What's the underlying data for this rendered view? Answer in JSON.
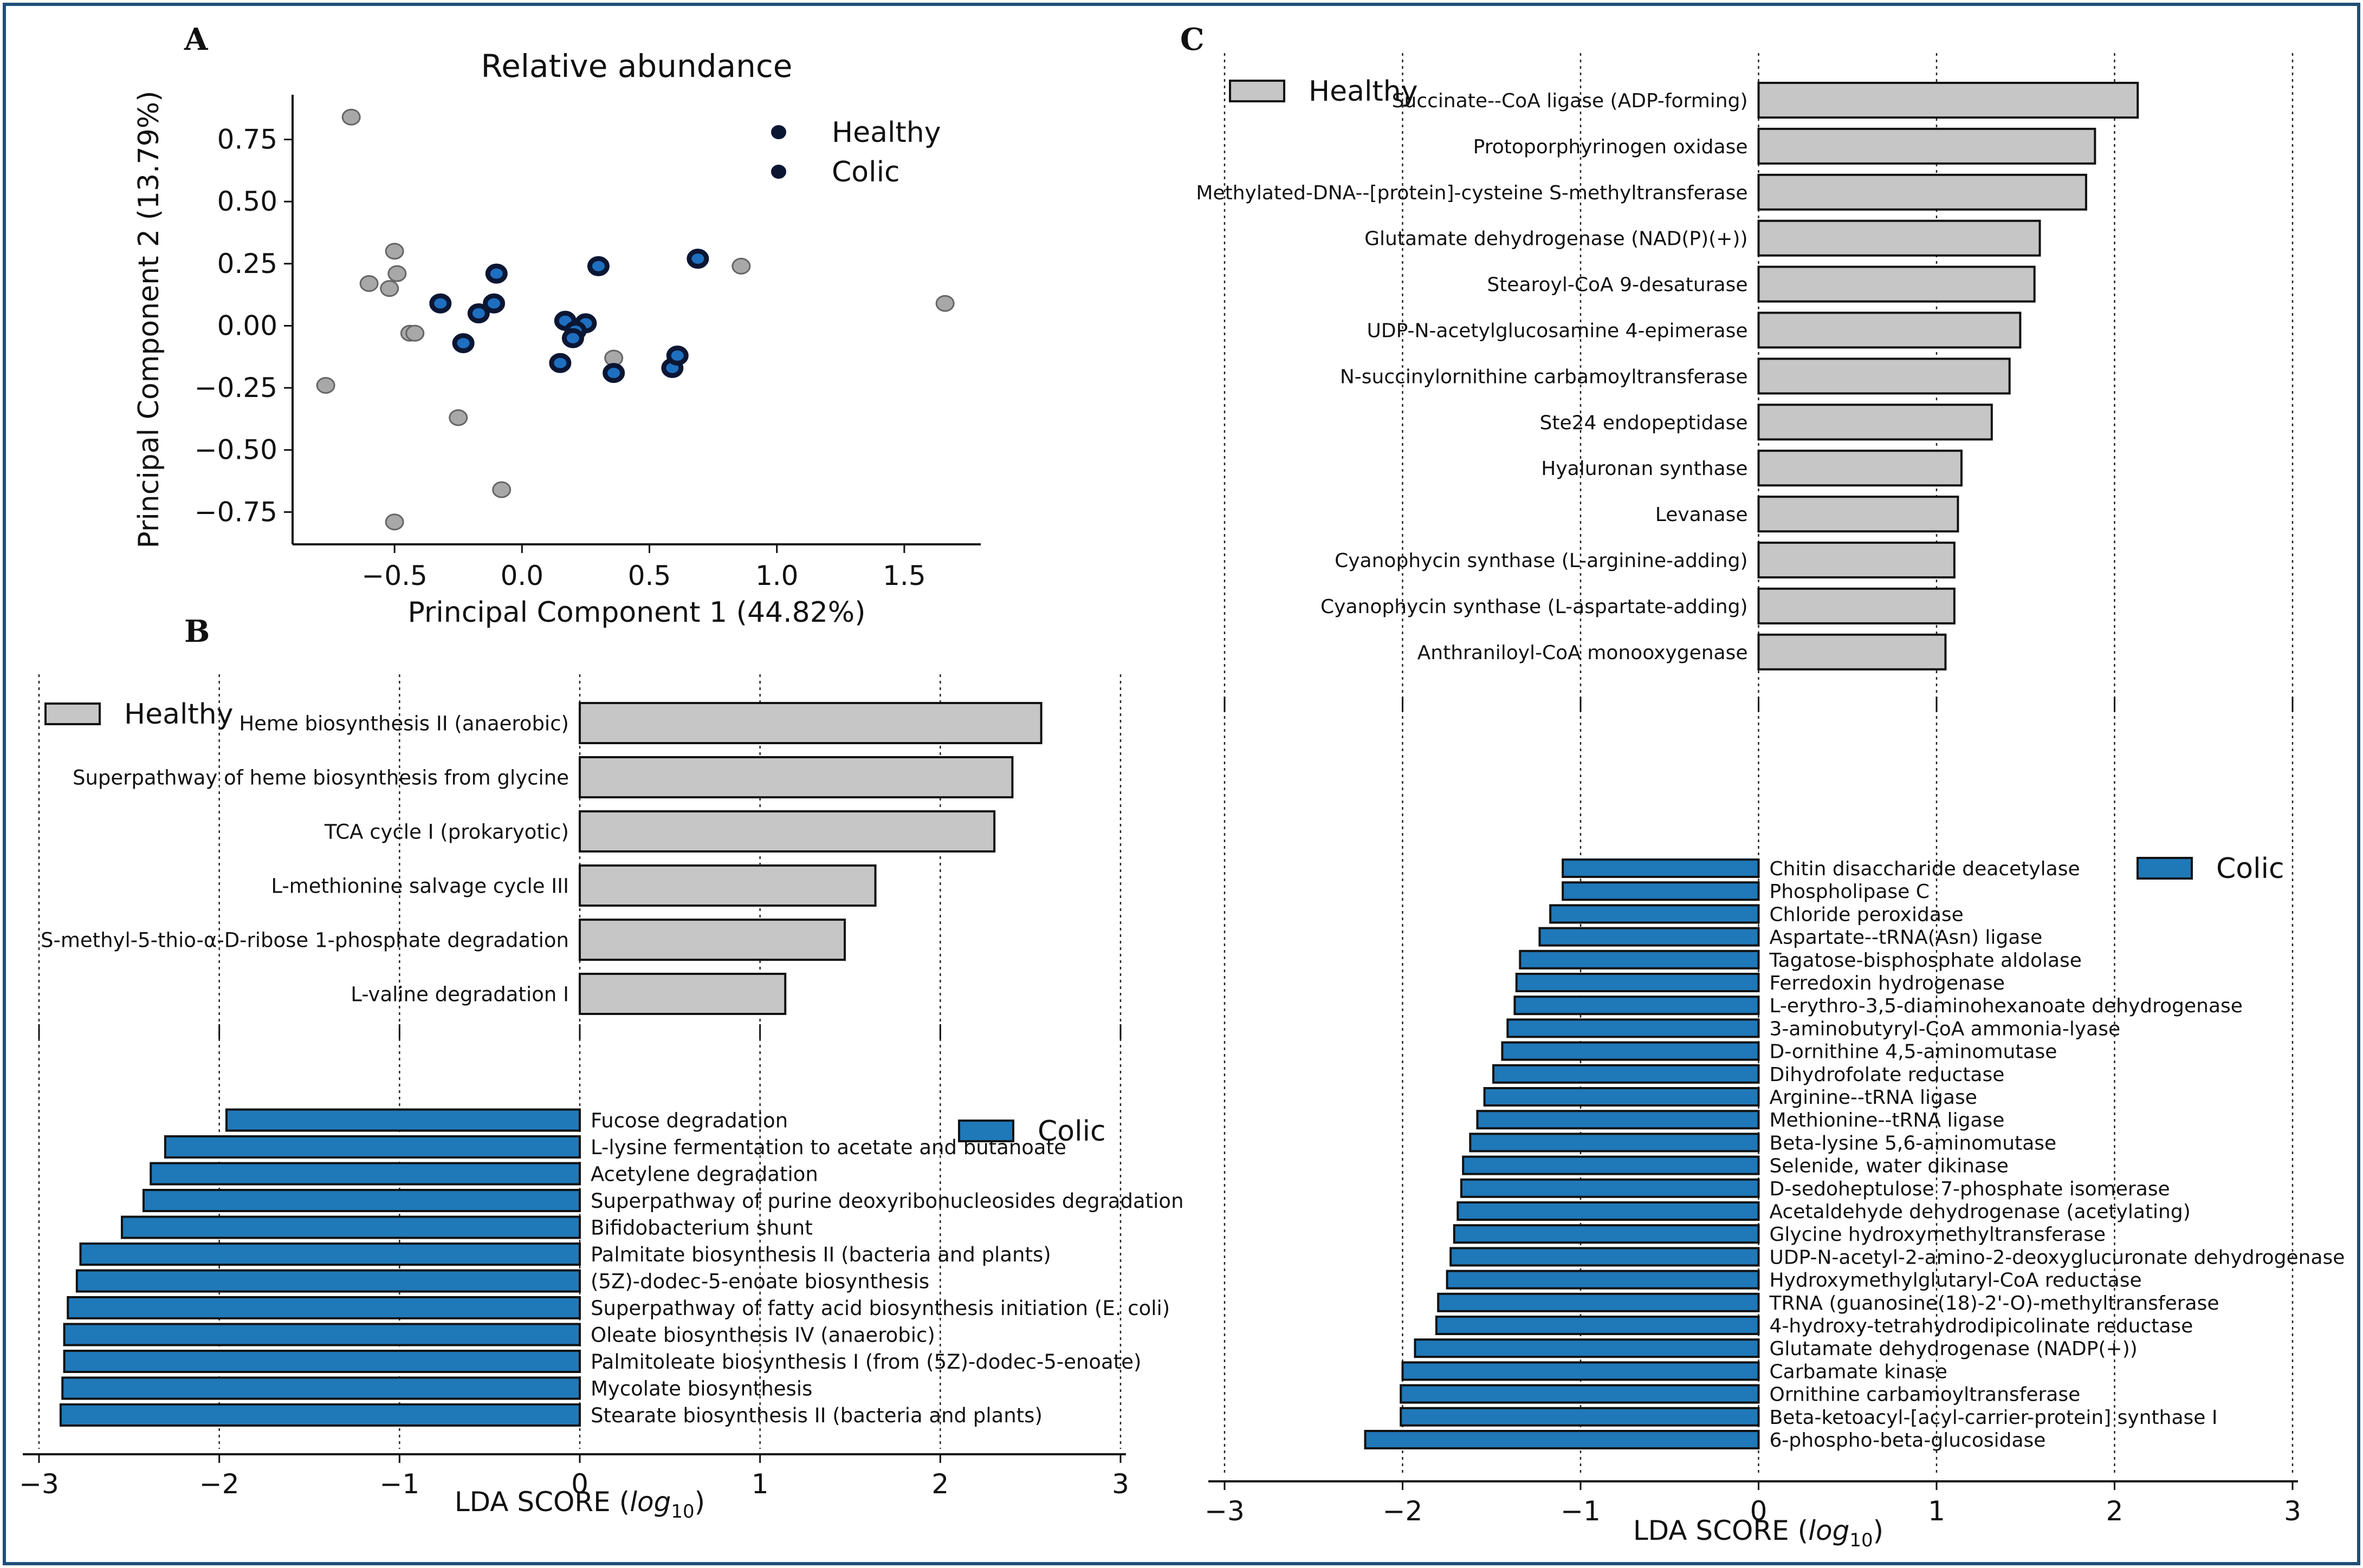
{
  "figure": {
    "panel_labels": [
      "A",
      "B",
      "C"
    ]
  },
  "colors": {
    "healthy_fill": "#c6c6c6",
    "colic_fill": "#1f78b8",
    "bar_edge": "#111111",
    "frame": "#1f4e79"
  },
  "chart_data": [
    {
      "id": "A",
      "type": "scatter",
      "title": "Relative abundance",
      "xlabel": "Principal Component 1 (44.82%)",
      "ylabel": "Principal Component 2 (13.79%)",
      "xlim": [
        -0.9,
        1.8
      ],
      "ylim": [
        -0.88,
        0.93
      ],
      "xticks": [
        -0.5,
        0.0,
        0.5,
        1.0,
        1.5
      ],
      "xtick_labels": [
        "−0.5",
        "0.0",
        "0.5",
        "1.0",
        "1.5"
      ],
      "yticks": [
        -0.75,
        -0.5,
        -0.25,
        0.0,
        0.25,
        0.5,
        0.75
      ],
      "ytick_labels": [
        "−0.75",
        "−0.50",
        "−0.25",
        "0.00",
        "0.25",
        "0.50",
        "0.75"
      ],
      "legend": [
        "Healthy",
        "Colic"
      ],
      "legend_position": "top-right",
      "series": [
        {
          "name": "Healthy",
          "points": [
            [
              -0.67,
              0.84
            ],
            [
              -0.5,
              0.3
            ],
            [
              -0.49,
              0.21
            ],
            [
              -0.6,
              0.17
            ],
            [
              -0.52,
              0.15
            ],
            [
              -0.44,
              -0.03
            ],
            [
              -0.42,
              -0.03
            ],
            [
              -0.77,
              -0.24
            ],
            [
              -0.25,
              -0.37
            ],
            [
              -0.08,
              -0.66
            ],
            [
              -0.5,
              -0.79
            ],
            [
              0.36,
              -0.13
            ],
            [
              0.86,
              0.24
            ],
            [
              1.66,
              0.09
            ]
          ]
        },
        {
          "name": "Colic",
          "points": [
            [
              -0.32,
              0.09
            ],
            [
              -0.1,
              0.21
            ],
            [
              -0.11,
              0.09
            ],
            [
              -0.17,
              0.05
            ],
            [
              -0.23,
              -0.07
            ],
            [
              0.17,
              0.02
            ],
            [
              0.25,
              0.01
            ],
            [
              0.21,
              -0.02
            ],
            [
              0.2,
              -0.05
            ],
            [
              0.15,
              -0.15
            ],
            [
              0.36,
              -0.19
            ],
            [
              0.59,
              -0.17
            ],
            [
              0.61,
              -0.12
            ],
            [
              0.3,
              0.24
            ],
            [
              0.69,
              0.27
            ]
          ]
        }
      ]
    },
    {
      "id": "B",
      "type": "bar",
      "orientation": "horizontal",
      "xlabel": "LDA SCORE (log10)",
      "xlim": [
        -3,
        3
      ],
      "xticks": [
        -3,
        -2,
        -1,
        0,
        1,
        2,
        3
      ],
      "xtick_labels": [
        "−3",
        "−2",
        "−1",
        "0",
        "1",
        "2",
        "3"
      ],
      "groups": [
        {
          "name": "Healthy",
          "categories": [
            "Heme biosynthesis II (anaerobic)",
            "Superpathway of heme biosynthesis from glycine",
            "TCA cycle I (prokaryotic)",
            "L-methionine salvage cycle III",
            "S-methyl-5-thio-α-D-ribose 1-phosphate degradation",
            "L-valine degradation I"
          ],
          "values": [
            2.56,
            2.4,
            2.3,
            1.64,
            1.47,
            1.14
          ]
        },
        {
          "name": "Colic",
          "categories": [
            "Fucose degradation",
            "L-lysine fermentation to acetate and butanoate",
            "Acetylene degradation",
            "Superpathway of purine deoxyribonucleosides degradation",
            "Bifidobacterium shunt",
            "Palmitate biosynthesis II (bacteria and plants)",
            "(5Z)-dodec-5-enoate biosynthesis",
            "Superpathway of fatty acid biosynthesis initiation (E. coli)",
            "Oleate biosynthesis IV (anaerobic)",
            "Palmitoleate biosynthesis I (from (5Z)-dodec-5-enoate)",
            "Mycolate biosynthesis",
            "Stearate biosynthesis II (bacteria and plants)"
          ],
          "values": [
            -1.96,
            -2.3,
            -2.38,
            -2.42,
            -2.54,
            -2.77,
            -2.79,
            -2.84,
            -2.86,
            -2.86,
            -2.87,
            -2.88
          ]
        }
      ]
    },
    {
      "id": "C",
      "type": "bar",
      "orientation": "horizontal",
      "xlabel": "LDA SCORE (log10)",
      "xlim": [
        -3,
        3
      ],
      "xticks": [
        -3,
        -2,
        -1,
        0,
        1,
        2,
        3
      ],
      "xtick_labels": [
        "−3",
        "−2",
        "−1",
        "0",
        "1",
        "2",
        "3"
      ],
      "groups": [
        {
          "name": "Healthy",
          "categories": [
            "Succinate--CoA ligase (ADP-forming)",
            "Protoporphyrinogen oxidase",
            "Methylated-DNA--[protein]-cysteine S-methyltransferase",
            "Glutamate dehydrogenase (NAD(P)(+))",
            "Stearoyl-CoA 9-desaturase",
            "UDP-N-acetylglucosamine 4-epimerase",
            "N-succinylornithine carbamoyltransferase",
            "Ste24 endopeptidase",
            "Hyaluronan synthase",
            "Levanase",
            "Cyanophycin synthase (L-arginine-adding)",
            "Cyanophycin synthase (L-aspartate-adding)",
            "Anthraniloyl-CoA monooxygenase"
          ],
          "values": [
            2.13,
            1.89,
            1.84,
            1.58,
            1.55,
            1.47,
            1.41,
            1.31,
            1.14,
            1.12,
            1.1,
            1.1,
            1.05
          ]
        },
        {
          "name": "Colic",
          "categories": [
            "Chitin disaccharide deacetylase",
            "Phospholipase C",
            "Chloride peroxidase",
            "Aspartate--tRNA(Asn) ligase",
            "Tagatose-bisphosphate aldolase",
            "Ferredoxin hydrogenase",
            "L-erythro-3,5-diaminohexanoate dehydrogenase",
            "3-aminobutyryl-CoA ammonia-lyase",
            "D-ornithine 4,5-aminomutase",
            "Dihydrofolate reductase",
            "Arginine--tRNA ligase",
            "Methionine--tRNA ligase",
            "Beta-lysine 5,6-aminomutase",
            "Selenide, water dikinase",
            "D-sedoheptulose 7-phosphate isomerase",
            "Acetaldehyde dehydrogenase (acetylating)",
            "Glycine hydroxymethyltransferase",
            "UDP-N-acetyl-2-amino-2-deoxyglucuronate dehydrogenase",
            "Hydroxymethylglutaryl-CoA reductase",
            "TRNA (guanosine(18)-2'-O)-methyltransferase",
            "4-hydroxy-tetrahydrodipicolinate reductase",
            "Glutamate dehydrogenase (NADP(+))",
            "Carbamate kinase",
            "Ornithine carbamoyltransferase",
            "Beta-ketoacyl-[acyl-carrier-protein] synthase I",
            "6-phospho-beta-glucosidase"
          ],
          "values": [
            -1.1,
            -1.1,
            -1.17,
            -1.23,
            -1.34,
            -1.36,
            -1.37,
            -1.41,
            -1.44,
            -1.49,
            -1.54,
            -1.58,
            -1.62,
            -1.66,
            -1.67,
            -1.69,
            -1.71,
            -1.73,
            -1.75,
            -1.8,
            -1.81,
            -1.93,
            -2.0,
            -2.01,
            -2.01,
            -2.21
          ]
        }
      ]
    }
  ]
}
